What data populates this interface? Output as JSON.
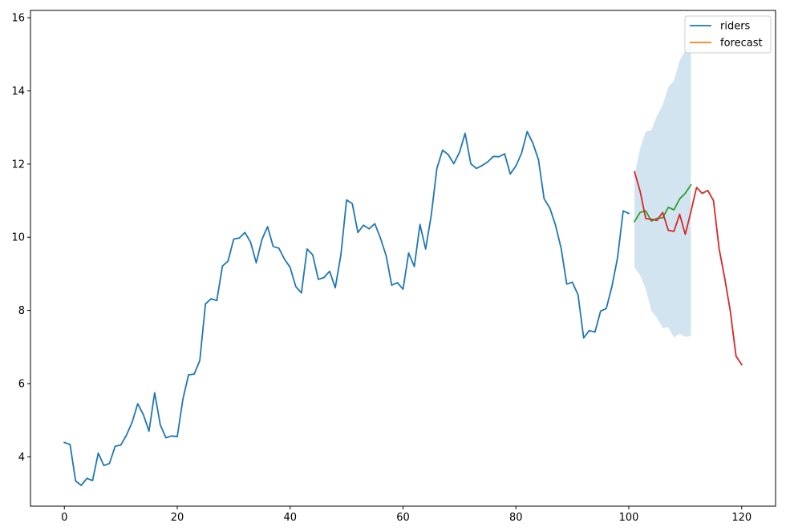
{
  "chart_data": {
    "type": "line",
    "title": "",
    "xlabel": "",
    "ylabel": "",
    "xlim": [
      -6,
      126
    ],
    "ylim": [
      2.65,
      16.2
    ],
    "xticks": [
      0,
      20,
      40,
      60,
      80,
      100,
      120
    ],
    "yticks": [
      4,
      6,
      8,
      10,
      12,
      14,
      16
    ],
    "legend_position": "top-right",
    "legend": [
      {
        "label": "riders",
        "color": "#1f77b4"
      },
      {
        "label": "forecast",
        "color": "#ff7f0e"
      }
    ],
    "series": [
      {
        "name": "riders",
        "color": "#1f77b4",
        "x": [
          0,
          1,
          2,
          3,
          4,
          5,
          6,
          7,
          8,
          9,
          10,
          11,
          12,
          13,
          14,
          15,
          16,
          17,
          18,
          19,
          20,
          21,
          22,
          23,
          24,
          25,
          26,
          27,
          28,
          29,
          30,
          31,
          32,
          33,
          34,
          35,
          36,
          37,
          38,
          39,
          40,
          41,
          42,
          43,
          44,
          45,
          46,
          47,
          48,
          49,
          50,
          51,
          52,
          53,
          54,
          55,
          56,
          57,
          58,
          59,
          60,
          61,
          62,
          63,
          64,
          65,
          66,
          67,
          68,
          69,
          70,
          71,
          72,
          73,
          74,
          75,
          76,
          77,
          78,
          79,
          80,
          81,
          82,
          83,
          84,
          85,
          86,
          87,
          88,
          89,
          90,
          91,
          92,
          93,
          94,
          95,
          96,
          97,
          98,
          99,
          100
        ],
        "y": [
          4.39,
          4.34,
          3.34,
          3.22,
          3.41,
          3.35,
          4.1,
          3.76,
          3.82,
          4.29,
          4.32,
          4.59,
          4.94,
          5.45,
          5.15,
          4.7,
          5.75,
          4.87,
          4.52,
          4.57,
          4.55,
          5.57,
          6.24,
          6.26,
          6.63,
          8.18,
          8.32,
          8.27,
          9.21,
          9.35,
          9.95,
          9.98,
          10.13,
          9.86,
          9.3,
          9.94,
          10.29,
          9.75,
          9.7,
          9.4,
          9.18,
          8.65,
          8.48,
          9.68,
          9.52,
          8.85,
          8.9,
          9.07,
          8.62,
          9.53,
          11.02,
          10.92,
          10.13,
          10.33,
          10.23,
          10.37,
          9.98,
          9.5,
          8.69,
          8.76,
          8.58,
          9.57,
          9.2,
          10.35,
          9.68,
          10.6,
          11.88,
          12.38,
          12.26,
          12.01,
          12.32,
          12.84,
          12.01,
          11.88,
          11.96,
          12.06,
          12.21,
          12.2,
          12.28,
          11.73,
          11.95,
          12.3,
          12.89,
          12.57,
          12.12,
          11.05,
          10.8,
          10.34,
          9.7,
          8.72,
          8.77,
          8.43,
          7.25,
          7.45,
          7.41,
          7.98,
          8.05,
          8.65,
          9.43,
          10.72,
          10.65
        ]
      },
      {
        "name": "",
        "color": "#2ca02c",
        "x": [
          101,
          102,
          103,
          104,
          105,
          106,
          107,
          108,
          109,
          110,
          111
        ],
        "y": [
          10.43,
          10.68,
          10.72,
          10.44,
          10.52,
          10.53,
          10.82,
          10.75,
          11.05,
          11.2,
          11.43
        ]
      },
      {
        "name": "",
        "color": "#d62728",
        "x": [
          101,
          102,
          103,
          104,
          105,
          106,
          107,
          108,
          109,
          110,
          111,
          112,
          113,
          114,
          115,
          116,
          117,
          118,
          119,
          120
        ],
        "y": [
          11.79,
          11.26,
          10.51,
          10.49,
          10.46,
          10.68,
          10.19,
          10.16,
          10.63,
          10.08,
          10.7,
          11.36,
          11.2,
          11.28,
          11.0,
          9.69,
          8.87,
          7.96,
          6.75,
          6.52
        ]
      }
    ],
    "confidence_band": {
      "color": "#1f77b4",
      "opacity": 0.2,
      "x": [
        101,
        102,
        103,
        104,
        105,
        106,
        107,
        108,
        109,
        110,
        111
      ],
      "lower": [
        9.18,
        8.96,
        8.59,
        7.98,
        7.8,
        7.52,
        7.54,
        7.26,
        7.36,
        7.28,
        7.3
      ],
      "upper": [
        11.7,
        12.43,
        12.89,
        12.93,
        13.32,
        13.61,
        14.1,
        14.28,
        14.83,
        15.1,
        15.3
      ]
    }
  }
}
